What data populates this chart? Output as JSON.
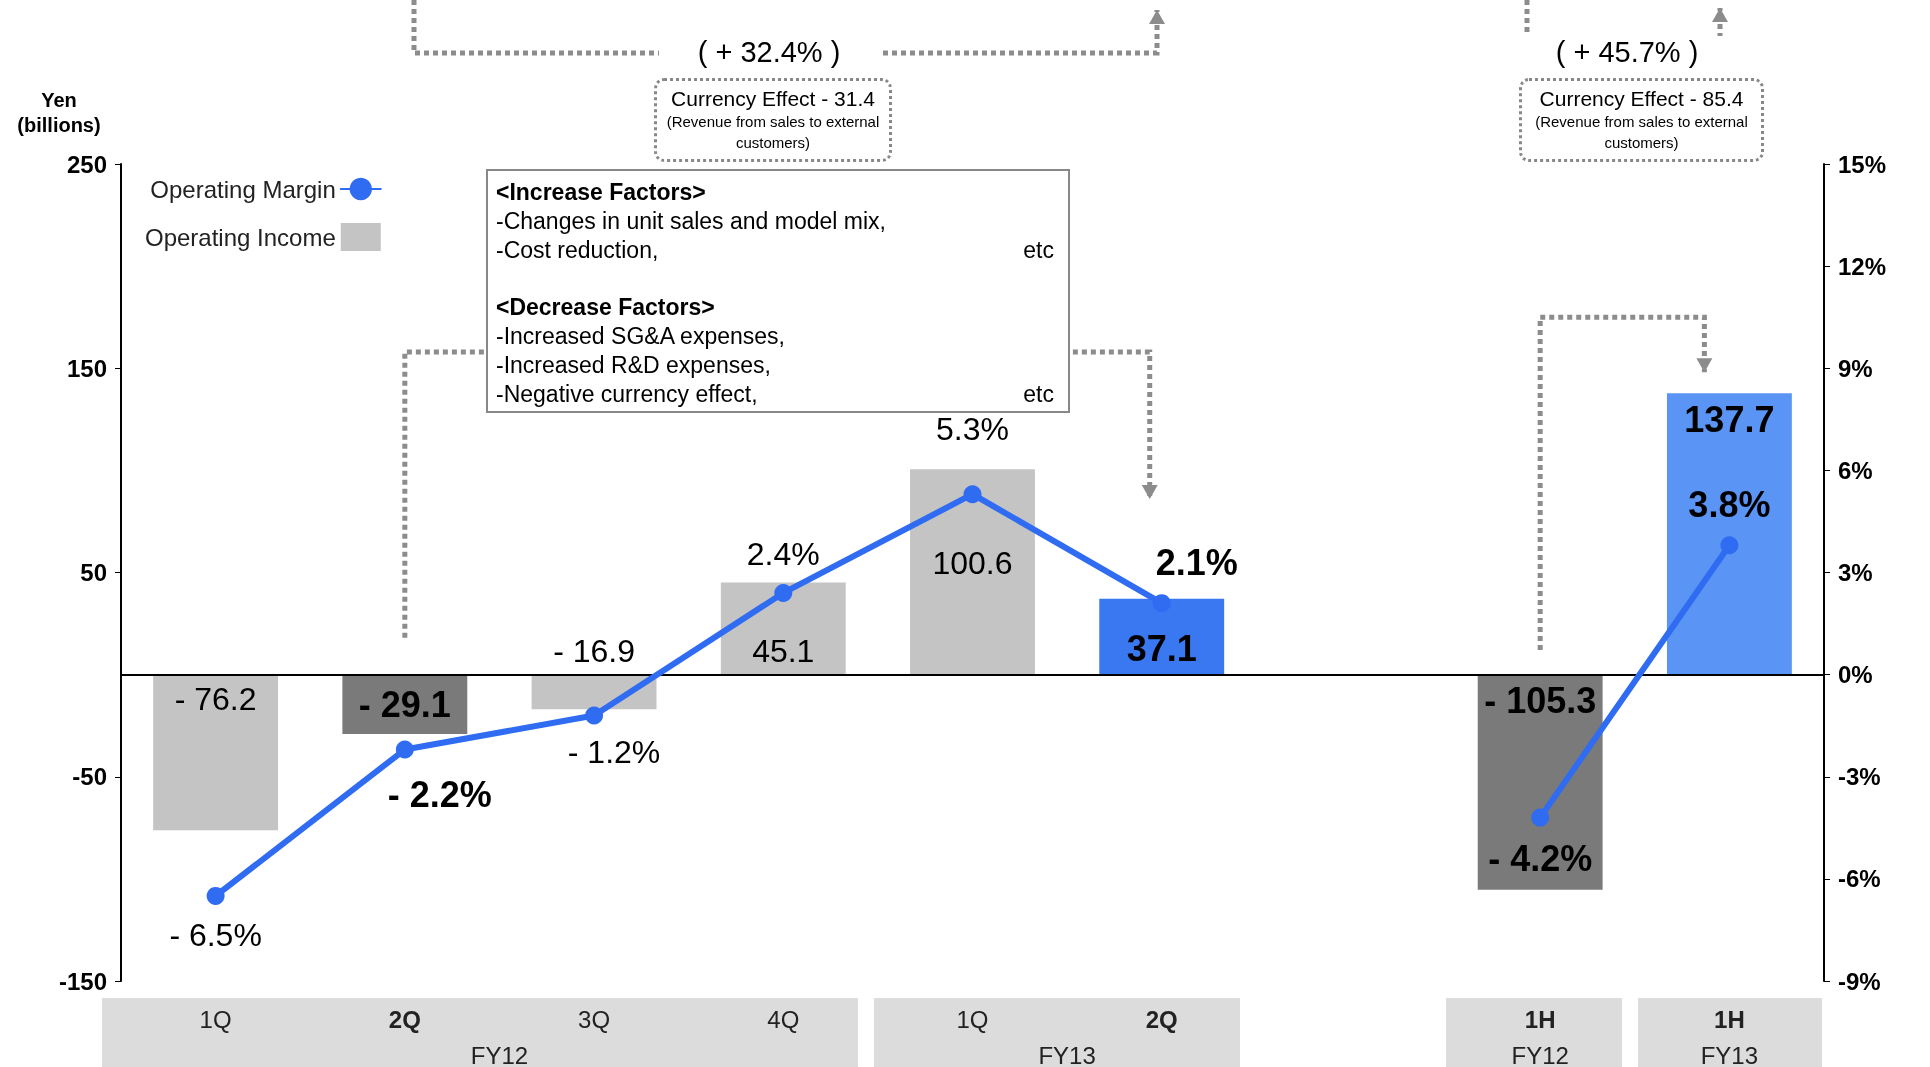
{
  "chart_data": {
    "type": "bar",
    "ylabel": "Yen\n(billions)",
    "categories": [
      "1Q",
      "2Q",
      "3Q",
      "4Q",
      "1Q",
      "2Q",
      null,
      "1H",
      "1H"
    ],
    "series": [
      {
        "name": "Operating Income",
        "color": "#c4c4c4",
        "colors": [
          "#c4c4c4",
          "#7a7a7a",
          "#c4c4c4",
          "#c4c4c4",
          "#c4c4c4",
          "#3a78f2",
          "#7a7a7a",
          "#7a7a7a",
          "#5a95f5"
        ],
        "values": [
          -76.2,
          -29.1,
          -16.9,
          45.1,
          100.6,
          37.1,
          null,
          -105.3,
          137.7
        ],
        "value_labels": [
          "- 76.2",
          "- 29.1",
          "- 16.9",
          "45.1",
          "100.6",
          "37.1",
          null,
          "- 105.3",
          "137.7"
        ]
      },
      {
        "name": "Operating Margin",
        "type": "line",
        "axis": "y2",
        "color": "#2f6cf2",
        "values": [
          -6.5,
          -2.2,
          -1.2,
          2.4,
          5.3,
          2.1,
          null,
          -4.2,
          3.8
        ],
        "value_labels": [
          "- 6.5%",
          "- 2.2%",
          "- 1.2%",
          "2.4%",
          "5.3%",
          "2.1%",
          null,
          "- 4.2%",
          "3.8%"
        ]
      }
    ],
    "ylim": [
      -150,
      250
    ],
    "yticks": [
      -150,
      -50,
      50,
      150,
      250
    ],
    "y2lim": [
      -9,
      15
    ],
    "y2ticks": [
      {
        "value": -9,
        "label": "-9%"
      },
      {
        "value": -6,
        "label": "-6%"
      },
      {
        "value": -3,
        "label": "-3%"
      },
      {
        "value": 0,
        "label": "0%"
      },
      {
        "value": 3,
        "label": "3%"
      },
      {
        "value": 6,
        "label": "6%"
      },
      {
        "value": 9,
        "label": "9%"
      },
      {
        "value": 12,
        "label": "12%"
      },
      {
        "value": 15,
        "label": "15%"
      }
    ],
    "annotations": [
      "( + 32.4% )",
      "Currency Effect  - 31.4",
      "(Revenue from sales to external customers)",
      "( + 45.7% )",
      "Currency Effect  - 85.4",
      "(Revenue from sales to external customers)",
      "<Increase Factors>",
      "-Changes in unit sales and model mix,",
      "-Cost reduction,",
      "etc",
      "<Decrease Factors>",
      "-Increased SG&A expenses,",
      "-Increased R&D expenses,",
      "-Negative currency effect,",
      "etc",
      "FY12",
      "FY13",
      "FY12",
      "FY13"
    ],
    "ref_lines": [
      {
        "axis": "y",
        "value": 0,
        "color": "#000000"
      }
    ],
    "grid": false,
    "legend": "top left",
    "marker": "circle",
    "line_style": "solid"
  }
}
